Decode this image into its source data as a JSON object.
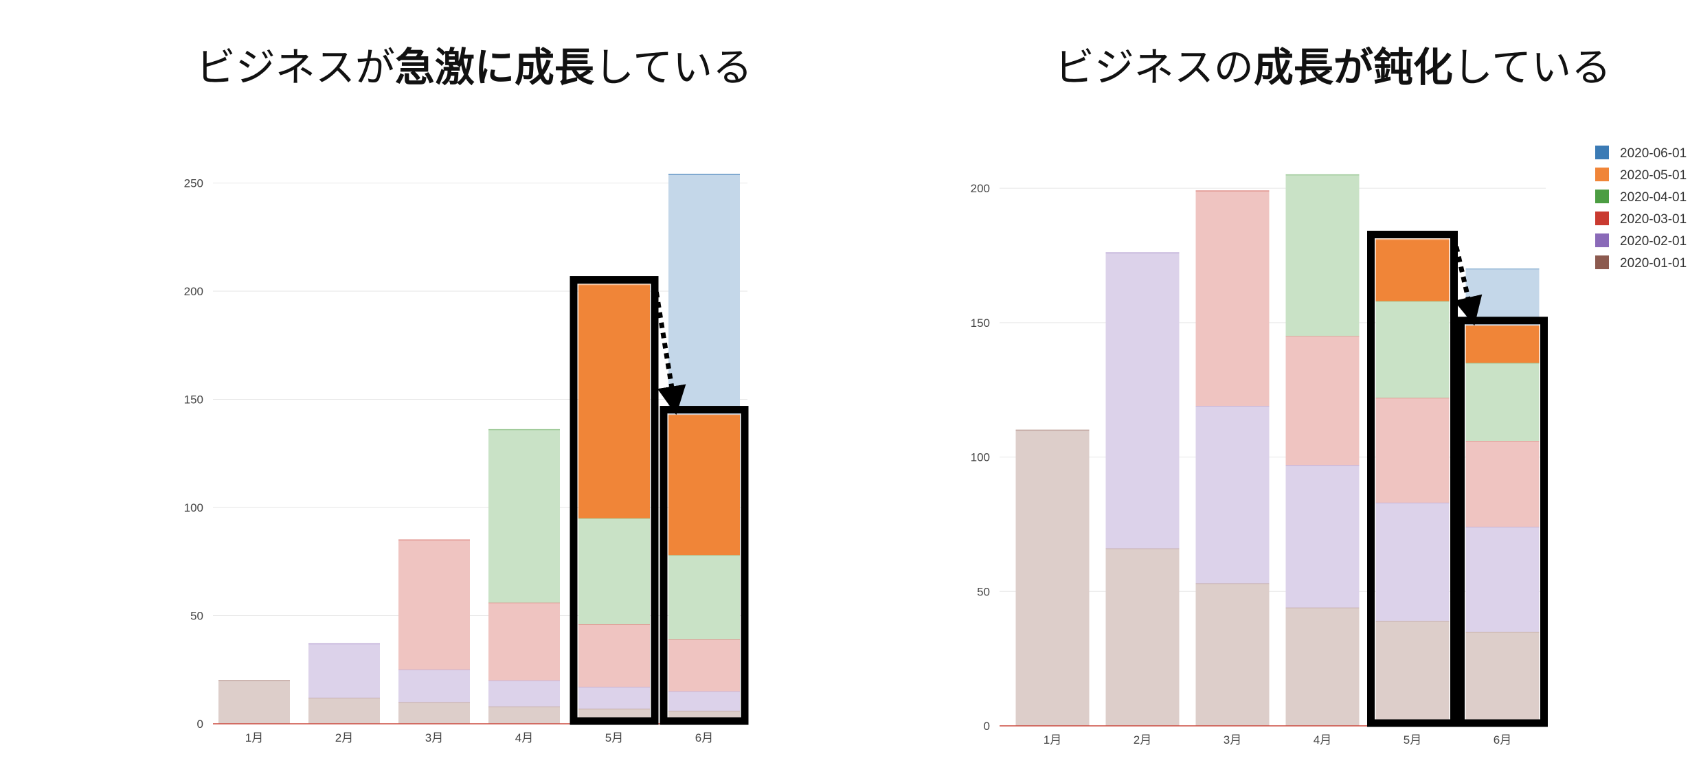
{
  "charts": {
    "left": {
      "title_pre": "ビジネスが",
      "title_bold": "急激に成長",
      "title_post": "している"
    },
    "right": {
      "title_pre": "ビジネスの",
      "title_bold": "成長が鈍化",
      "title_post": "している"
    }
  },
  "legend": {
    "items": [
      {
        "label": "2020-06-01",
        "color": "#3b7bb5"
      },
      {
        "label": "2020-05-01",
        "color": "#f08538"
      },
      {
        "label": "2020-04-01",
        "color": "#4c9d42"
      },
      {
        "label": "2020-03-01",
        "color": "#c93a30"
      },
      {
        "label": "2020-02-01",
        "color": "#8a6ab8"
      },
      {
        "label": "2020-01-01",
        "color": "#8c5a4f"
      }
    ]
  },
  "chart_data": [
    {
      "type": "bar",
      "stacked": true,
      "title": "ビジネスが急激に成長している",
      "categories": [
        "1月",
        "2月",
        "3月",
        "4月",
        "5月",
        "6月"
      ],
      "ylim": [
        0,
        260
      ],
      "yticks": [
        0,
        50,
        100,
        150,
        200,
        250
      ],
      "grid": true,
      "series": [
        {
          "name": "2020-01-01",
          "values": [
            20,
            12,
            10,
            8,
            7,
            6
          ]
        },
        {
          "name": "2020-02-01",
          "values": [
            0,
            25,
            15,
            12,
            10,
            9
          ]
        },
        {
          "name": "2020-03-01",
          "values": [
            0,
            0,
            60,
            36,
            29,
            24
          ]
        },
        {
          "name": "2020-04-01",
          "values": [
            0,
            0,
            0,
            80,
            49,
            39
          ]
        },
        {
          "name": "2020-05-01",
          "values": [
            0,
            0,
            0,
            0,
            108,
            65
          ]
        },
        {
          "name": "2020-06-01",
          "values": [
            0,
            0,
            0,
            0,
            0,
            111
          ]
        }
      ],
      "highlight": [
        "5月",
        "6月"
      ]
    },
    {
      "type": "bar",
      "stacked": true,
      "title": "ビジネスの成長が鈍化している",
      "categories": [
        "1月",
        "2月",
        "3月",
        "4月",
        "5月",
        "6月"
      ],
      "ylim": [
        0,
        210
      ],
      "yticks": [
        0,
        50,
        100,
        150,
        200
      ],
      "grid": true,
      "series": [
        {
          "name": "2020-01-01",
          "values": [
            110,
            66,
            53,
            44,
            39,
            35
          ]
        },
        {
          "name": "2020-02-01",
          "values": [
            0,
            110,
            66,
            53,
            44,
            39
          ]
        },
        {
          "name": "2020-03-01",
          "values": [
            0,
            0,
            80,
            48,
            39,
            32
          ]
        },
        {
          "name": "2020-04-01",
          "values": [
            0,
            0,
            0,
            60,
            36,
            29
          ]
        },
        {
          "name": "2020-05-01",
          "values": [
            0,
            0,
            0,
            0,
            23,
            14
          ]
        },
        {
          "name": "2020-06-01",
          "values": [
            0,
            0,
            0,
            0,
            0,
            21
          ]
        }
      ],
      "highlight": [
        "5月",
        "6月"
      ]
    }
  ]
}
